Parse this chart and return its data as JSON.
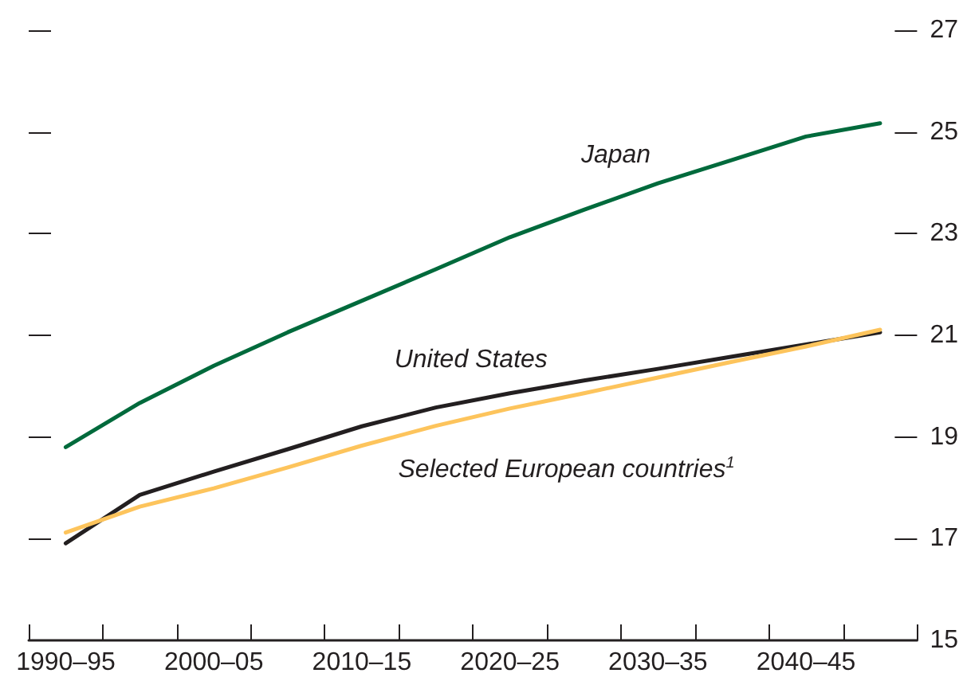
{
  "chart_data": {
    "type": "line",
    "categories": [
      "1990–95",
      null,
      "2000–05",
      null,
      "2010–15",
      null,
      "2020–25",
      null,
      "2030–35",
      null,
      "2040–45",
      null
    ],
    "series": [
      {
        "name": "Japan",
        "color": "#006a3c",
        "values": [
          18.8,
          19.67,
          20.4,
          21.06,
          21.68,
          22.3,
          22.93,
          23.47,
          23.99,
          24.45,
          24.91,
          25.17
        ]
      },
      {
        "name": "United States",
        "color": "#231f20",
        "values": [
          16.91,
          17.86,
          18.32,
          18.76,
          19.21,
          19.58,
          19.86,
          20.11,
          20.34,
          20.58,
          20.82,
          21.06
        ]
      },
      {
        "name": "Selected European countries$^{1}$",
        "color": "#fdc45c",
        "values": [
          17.12,
          17.63,
          17.99,
          18.4,
          18.83,
          19.22,
          19.56,
          19.86,
          20.17,
          20.48,
          20.78,
          21.11
        ]
      }
    ],
    "ylim": [
      15,
      27
    ],
    "yticks": [
      15,
      17,
      19,
      21,
      23,
      25,
      27
    ],
    "grid": false,
    "legend": false
  }
}
